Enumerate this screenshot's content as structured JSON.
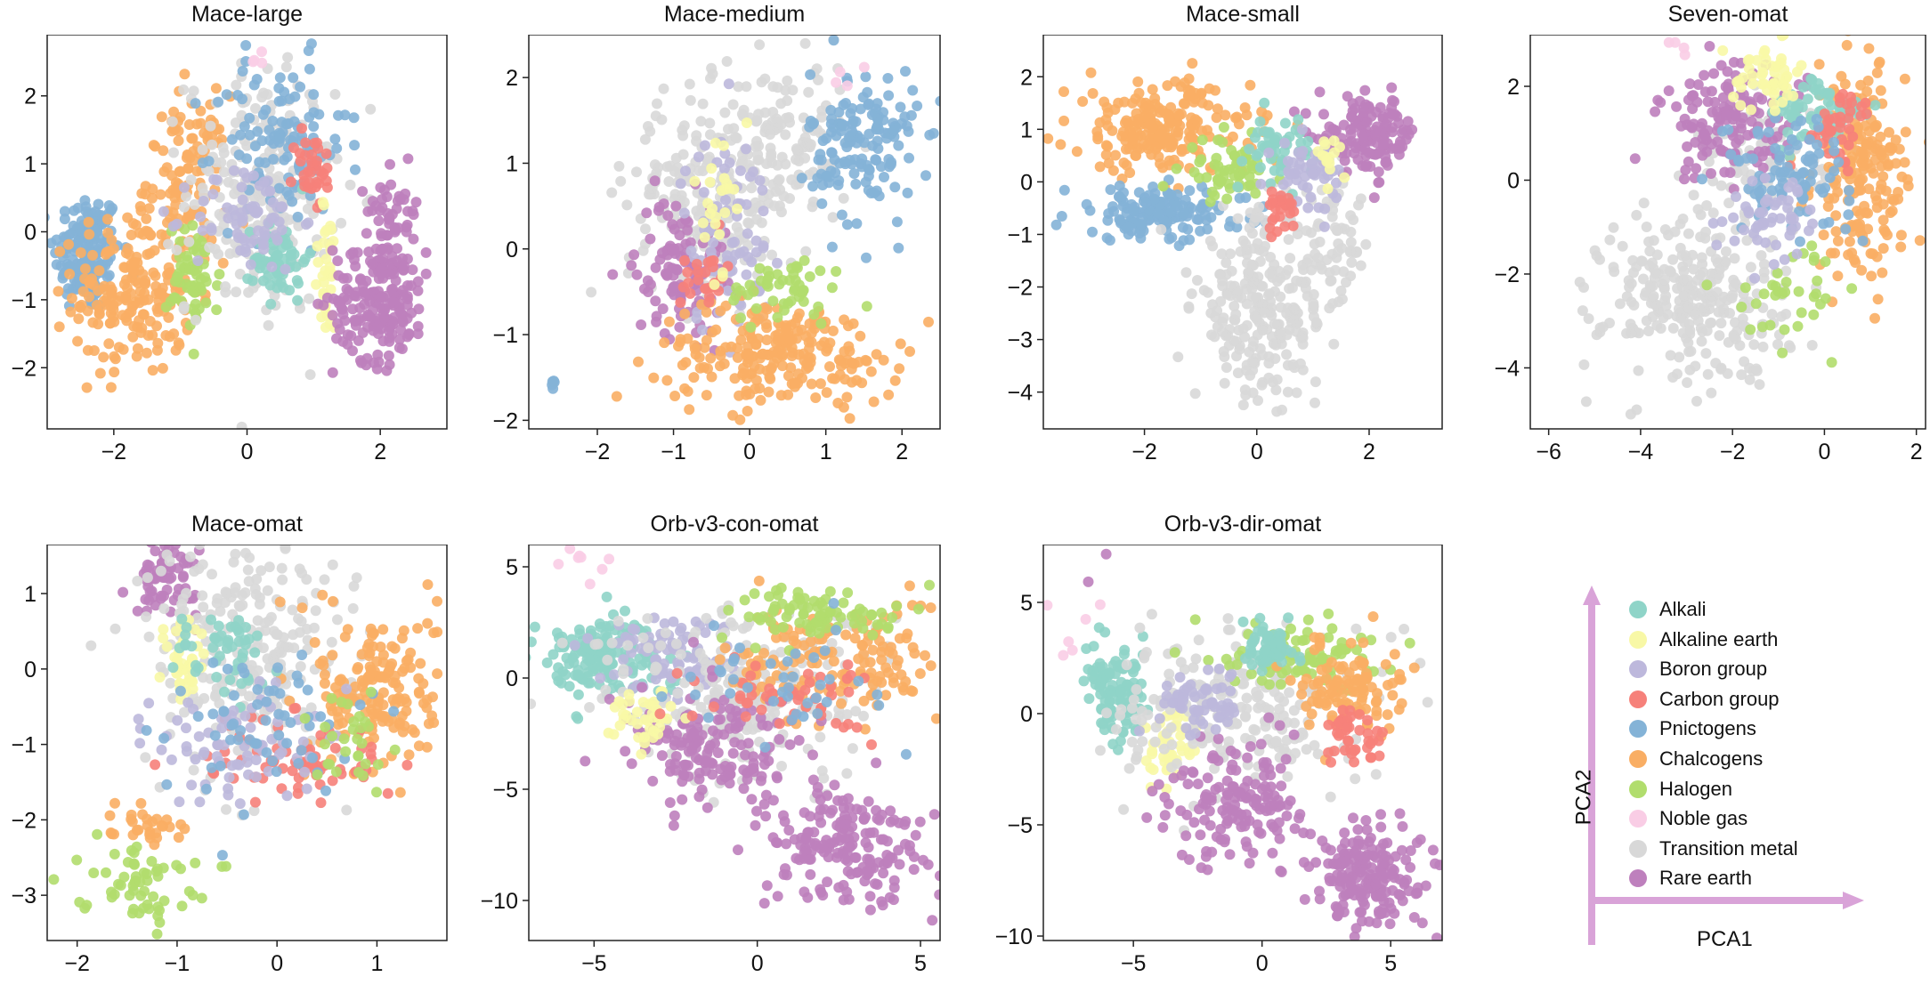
{
  "groups": [
    {
      "key": "alkali",
      "label": "Alkali",
      "color": "#8fd4c8"
    },
    {
      "key": "alkaline",
      "label": "Alkaline earth",
      "color": "#f8f8a6"
    },
    {
      "key": "boron",
      "label": "Boron group",
      "color": "#bdb8dc"
    },
    {
      "key": "carbon",
      "label": "Carbon group",
      "color": "#f6817a"
    },
    {
      "key": "pnictogens",
      "label": "Pnictogens",
      "color": "#84b3d7"
    },
    {
      "key": "chalcogens",
      "label": "Chalcogens",
      "color": "#f9ae64"
    },
    {
      "key": "halogen",
      "label": "Halogen",
      "color": "#b1dd6d"
    },
    {
      "key": "noble",
      "label": "Noble gas",
      "color": "#f9cde5"
    },
    {
      "key": "transition",
      "label": "Transition metal",
      "color": "#d8d8d8"
    },
    {
      "key": "rare",
      "label": "Rare earth",
      "color": "#be80bd"
    }
  ],
  "axes_legend": {
    "x": "PCA1",
    "y": "PCA2",
    "arrow_color": "#d9a3d8"
  },
  "chart_data": [
    {
      "type": "scatter",
      "title": "Mace-large",
      "xlim": [
        -3,
        3
      ],
      "ylim": [
        -2.9,
        2.9
      ],
      "xticks": [
        -2,
        0,
        2
      ],
      "yticks": [
        -2,
        -1,
        0,
        1,
        2
      ],
      "clusters": [
        {
          "group": "pnictogens",
          "cx": -2.4,
          "cy": -0.3,
          "sx": 0.25,
          "sy": 0.45,
          "n": 160
        },
        {
          "group": "chalcogens",
          "cx": -1.7,
          "cy": -0.9,
          "sx": 0.45,
          "sy": 0.6,
          "n": 200
        },
        {
          "group": "chalcogens",
          "cx": -0.9,
          "cy": 0.8,
          "sx": 0.3,
          "sy": 0.6,
          "n": 110
        },
        {
          "group": "halogen",
          "cx": -0.8,
          "cy": -0.7,
          "sx": 0.2,
          "sy": 0.4,
          "n": 60
        },
        {
          "group": "transition",
          "cx": 0.2,
          "cy": 0.6,
          "sx": 0.55,
          "sy": 0.9,
          "n": 230
        },
        {
          "group": "pnictogens",
          "cx": 0.5,
          "cy": 1.3,
          "sx": 0.5,
          "sy": 0.6,
          "n": 110
        },
        {
          "group": "alkali",
          "cx": 0.5,
          "cy": -0.4,
          "sx": 0.2,
          "sy": 0.3,
          "n": 60
        },
        {
          "group": "boron",
          "cx": 0.0,
          "cy": 0.2,
          "sx": 0.4,
          "sy": 0.4,
          "n": 70
        },
        {
          "group": "carbon",
          "cx": 1.0,
          "cy": 0.9,
          "sx": 0.15,
          "sy": 0.3,
          "n": 35
        },
        {
          "group": "alkaline",
          "cx": 1.2,
          "cy": -0.6,
          "sx": 0.1,
          "sy": 0.5,
          "n": 35
        },
        {
          "group": "rare",
          "cx": 2.0,
          "cy": -1.0,
          "sx": 0.35,
          "sy": 0.45,
          "n": 190
        },
        {
          "group": "rare",
          "cx": 2.2,
          "cy": 0.3,
          "sx": 0.2,
          "sy": 0.3,
          "n": 50
        },
        {
          "group": "noble",
          "cx": 0.2,
          "cy": 2.5,
          "sx": 0.2,
          "sy": 0.1,
          "n": 4
        }
      ]
    },
    {
      "type": "scatter",
      "title": "Mace-medium",
      "xlim": [
        -2.9,
        2.5
      ],
      "ylim": [
        -2.1,
        2.5
      ],
      "xticks": [
        -2,
        -1,
        0,
        1,
        2
      ],
      "yticks": [
        -2,
        -1,
        0,
        1,
        2
      ],
      "clusters": [
        {
          "group": "transition",
          "cx": -0.6,
          "cy": 0.6,
          "sx": 0.5,
          "sy": 0.6,
          "n": 220
        },
        {
          "group": "transition",
          "cx": 0.5,
          "cy": 1.2,
          "sx": 0.4,
          "sy": 0.5,
          "n": 120
        },
        {
          "group": "rare",
          "cx": -0.9,
          "cy": -0.2,
          "sx": 0.3,
          "sy": 0.4,
          "n": 110
        },
        {
          "group": "boron",
          "cx": -0.3,
          "cy": 0.2,
          "sx": 0.3,
          "sy": 0.6,
          "n": 80
        },
        {
          "group": "pnictogens",
          "cx": 1.5,
          "cy": 1.2,
          "sx": 0.35,
          "sy": 0.45,
          "n": 150
        },
        {
          "group": "chalcogens",
          "cx": 0.4,
          "cy": -1.2,
          "sx": 0.8,
          "sy": 0.3,
          "n": 230
        },
        {
          "group": "halogen",
          "cx": 0.5,
          "cy": -0.5,
          "sx": 0.4,
          "sy": 0.2,
          "n": 50
        },
        {
          "group": "carbon",
          "cx": -0.6,
          "cy": -0.3,
          "sx": 0.15,
          "sy": 0.2,
          "n": 25
        },
        {
          "group": "alkaline",
          "cx": -0.4,
          "cy": 0.6,
          "sx": 0.1,
          "sy": 0.4,
          "n": 25
        },
        {
          "group": "pnictogens",
          "cx": -2.6,
          "cy": -1.55,
          "sx": 0.04,
          "sy": 0.05,
          "n": 5
        },
        {
          "group": "noble",
          "cx": 1.3,
          "cy": 1.9,
          "sx": 0.15,
          "sy": 0.1,
          "n": 4
        }
      ]
    },
    {
      "type": "scatter",
      "title": "Mace-small",
      "xlim": [
        -3.8,
        3.3
      ],
      "ylim": [
        -4.7,
        2.8
      ],
      "xticks": [
        -2,
        0,
        2
      ],
      "yticks": [
        -4,
        -3,
        -2,
        -1,
        0,
        1,
        2
      ],
      "clusters": [
        {
          "group": "chalcogens",
          "cx": -1.7,
          "cy": 1.0,
          "sx": 0.8,
          "sy": 0.45,
          "n": 220
        },
        {
          "group": "pnictogens",
          "cx": -1.8,
          "cy": -0.6,
          "sx": 0.8,
          "sy": 0.25,
          "n": 150
        },
        {
          "group": "transition",
          "cx": 0.1,
          "cy": -2.4,
          "sx": 0.6,
          "sy": 0.9,
          "n": 260
        },
        {
          "group": "transition",
          "cx": 1.4,
          "cy": -1.3,
          "sx": 0.3,
          "sy": 0.6,
          "n": 60
        },
        {
          "group": "rare",
          "cx": 2.0,
          "cy": 0.9,
          "sx": 0.45,
          "sy": 0.35,
          "n": 140
        },
        {
          "group": "halogen",
          "cx": -0.5,
          "cy": 0.2,
          "sx": 0.35,
          "sy": 0.3,
          "n": 60
        },
        {
          "group": "alkali",
          "cx": 0.4,
          "cy": 0.6,
          "sx": 0.3,
          "sy": 0.3,
          "n": 50
        },
        {
          "group": "boron",
          "cx": 0.9,
          "cy": 0.2,
          "sx": 0.3,
          "sy": 0.3,
          "n": 50
        },
        {
          "group": "carbon",
          "cx": 0.4,
          "cy": -0.6,
          "sx": 0.15,
          "sy": 0.3,
          "n": 25
        },
        {
          "group": "alkaline",
          "cx": 1.3,
          "cy": 0.5,
          "sx": 0.1,
          "sy": 0.2,
          "n": 15
        }
      ]
    },
    {
      "type": "scatter",
      "title": "Seven-omat",
      "xlim": [
        -6.4,
        2.2
      ],
      "ylim": [
        -5.3,
        3.1
      ],
      "xticks": [
        -6,
        -4,
        -2,
        0,
        2
      ],
      "yticks": [
        -4,
        -2,
        0,
        2
      ],
      "clusters": [
        {
          "group": "transition",
          "cx": -2.8,
          "cy": -2.5,
          "sx": 1.0,
          "sy": 0.9,
          "n": 280
        },
        {
          "group": "transition",
          "cx": -1.4,
          "cy": 0.4,
          "sx": 0.7,
          "sy": 0.6,
          "n": 80
        },
        {
          "group": "rare",
          "cx": -2.0,
          "cy": 1.2,
          "sx": 0.8,
          "sy": 0.6,
          "n": 140
        },
        {
          "group": "chalcogens",
          "cx": 0.8,
          "cy": 0.2,
          "sx": 0.5,
          "sy": 1.1,
          "n": 200
        },
        {
          "group": "alkali",
          "cx": -0.1,
          "cy": 1.4,
          "sx": 0.5,
          "sy": 0.4,
          "n": 70
        },
        {
          "group": "carbon",
          "cx": 0.3,
          "cy": 1.1,
          "sx": 0.4,
          "sy": 0.4,
          "n": 40
        },
        {
          "group": "pnictogens",
          "cx": -0.8,
          "cy": 0.2,
          "sx": 0.7,
          "sy": 0.6,
          "n": 90
        },
        {
          "group": "alkaline",
          "cx": -1.2,
          "cy": 2.2,
          "sx": 0.4,
          "sy": 0.35,
          "n": 50
        },
        {
          "group": "halogen",
          "cx": -0.8,
          "cy": -2.4,
          "sx": 0.6,
          "sy": 0.5,
          "n": 35
        },
        {
          "group": "boron",
          "cx": -1.0,
          "cy": -0.7,
          "sx": 0.6,
          "sy": 0.5,
          "n": 50
        },
        {
          "group": "noble",
          "cx": -3.2,
          "cy": 2.8,
          "sx": 0.25,
          "sy": 0.1,
          "n": 4
        }
      ]
    },
    {
      "type": "scatter",
      "title": "Mace-omat",
      "xlim": [
        -2.3,
        1.7
      ],
      "ylim": [
        -3.6,
        1.65
      ],
      "xticks": [
        -2,
        -1,
        0,
        1
      ],
      "yticks": [
        -3,
        -2,
        -1,
        0,
        1
      ],
      "clusters": [
        {
          "group": "rare",
          "cx": -1.1,
          "cy": 1.2,
          "sx": 0.15,
          "sy": 0.25,
          "n": 70
        },
        {
          "group": "transition",
          "cx": -0.3,
          "cy": 0.3,
          "sx": 0.5,
          "sy": 0.8,
          "n": 260
        },
        {
          "group": "chalcogens",
          "cx": 1.0,
          "cy": -0.3,
          "sx": 0.3,
          "sy": 0.55,
          "n": 170
        },
        {
          "group": "alkaline",
          "cx": -0.9,
          "cy": 0.1,
          "sx": 0.1,
          "sy": 0.4,
          "n": 40
        },
        {
          "group": "alkali",
          "cx": -0.5,
          "cy": 0.2,
          "sx": 0.25,
          "sy": 0.3,
          "n": 50
        },
        {
          "group": "carbon",
          "cx": 0.2,
          "cy": -1.2,
          "sx": 0.5,
          "sy": 0.3,
          "n": 70
        },
        {
          "group": "boron",
          "cx": -0.4,
          "cy": -1.0,
          "sx": 0.4,
          "sy": 0.4,
          "n": 80
        },
        {
          "group": "pnictogens",
          "cx": -0.2,
          "cy": -0.7,
          "sx": 0.5,
          "sy": 0.5,
          "n": 60
        },
        {
          "group": "halogen",
          "cx": -1.4,
          "cy": -2.8,
          "sx": 0.3,
          "sy": 0.25,
          "n": 60
        },
        {
          "group": "halogen",
          "cx": 0.7,
          "cy": -1.0,
          "sx": 0.2,
          "sy": 0.3,
          "n": 30
        },
        {
          "group": "chalcogens",
          "cx": -1.3,
          "cy": -2.0,
          "sx": 0.2,
          "sy": 0.15,
          "n": 30
        }
      ]
    },
    {
      "type": "scatter",
      "title": "Orb-v3-con-omat",
      "xlim": [
        -7,
        5.6
      ],
      "ylim": [
        -11.8,
        6
      ],
      "xticks": [
        -5,
        0,
        5
      ],
      "yticks": [
        -10,
        -5,
        0,
        5
      ],
      "clusters": [
        {
          "group": "alkali",
          "cx": -4.8,
          "cy": 1.0,
          "sx": 1.0,
          "sy": 0.9,
          "n": 150
        },
        {
          "group": "boron",
          "cx": -2.8,
          "cy": 1.0,
          "sx": 1.0,
          "sy": 1.0,
          "n": 90
        },
        {
          "group": "transition",
          "cx": -0.5,
          "cy": -0.8,
          "sx": 2.2,
          "sy": 2.0,
          "n": 240
        },
        {
          "group": "chalcogens",
          "cx": 2.4,
          "cy": 0.8,
          "sx": 1.6,
          "sy": 1.4,
          "n": 160
        },
        {
          "group": "halogen",
          "cx": 2.0,
          "cy": 2.9,
          "sx": 1.4,
          "sy": 0.6,
          "n": 80
        },
        {
          "group": "rare",
          "cx": -1.4,
          "cy": -3.3,
          "sx": 1.3,
          "sy": 1.3,
          "n": 150
        },
        {
          "group": "rare",
          "cx": 2.8,
          "cy": -7.5,
          "sx": 1.3,
          "sy": 1.4,
          "n": 190
        },
        {
          "group": "alkaline",
          "cx": -3.5,
          "cy": -1.7,
          "sx": 0.5,
          "sy": 0.6,
          "n": 40
        },
        {
          "group": "carbon",
          "cx": 1.0,
          "cy": -0.8,
          "sx": 1.5,
          "sy": 0.9,
          "n": 50
        },
        {
          "group": "pnictogens",
          "cx": 0.5,
          "cy": 0.0,
          "sx": 1.5,
          "sy": 1.2,
          "n": 40
        },
        {
          "group": "noble",
          "cx": -5.5,
          "cy": 5.0,
          "sx": 0.8,
          "sy": 0.3,
          "n": 8
        }
      ]
    },
    {
      "type": "scatter",
      "title": "Orb-v3-dir-omat",
      "xlim": [
        -8.5,
        7
      ],
      "ylim": [
        -10.2,
        7.6
      ],
      "xticks": [
        -5,
        0,
        5
      ],
      "yticks": [
        -10,
        -5,
        0,
        5
      ],
      "clusters": [
        {
          "group": "alkali",
          "cx": -5.6,
          "cy": 0.7,
          "sx": 0.6,
          "sy": 1.0,
          "n": 110
        },
        {
          "group": "alkaline",
          "cx": -3.5,
          "cy": -1.5,
          "sx": 0.5,
          "sy": 1.0,
          "n": 50
        },
        {
          "group": "transition",
          "cx": -1.0,
          "cy": 0.3,
          "sx": 2.3,
          "sy": 1.8,
          "n": 230
        },
        {
          "group": "halogen",
          "cx": 1.5,
          "cy": 2.7,
          "sx": 1.5,
          "sy": 0.8,
          "n": 90
        },
        {
          "group": "chalcogens",
          "cx": 3.4,
          "cy": 1.2,
          "sx": 1.0,
          "sy": 1.0,
          "n": 110
        },
        {
          "group": "alkali",
          "cx": 0.2,
          "cy": 3.0,
          "sx": 0.6,
          "sy": 0.5,
          "n": 50
        },
        {
          "group": "rare",
          "cx": -0.8,
          "cy": -4.0,
          "sx": 1.3,
          "sy": 1.4,
          "n": 150
        },
        {
          "group": "rare",
          "cx": 4.3,
          "cy": -7.3,
          "sx": 1.2,
          "sy": 1.2,
          "n": 180
        },
        {
          "group": "carbon",
          "cx": 3.5,
          "cy": -1.0,
          "sx": 0.7,
          "sy": 0.6,
          "n": 40
        },
        {
          "group": "boron",
          "cx": -2.3,
          "cy": 0.5,
          "sx": 0.8,
          "sy": 0.8,
          "n": 60
        },
        {
          "group": "noble",
          "cx": -6.5,
          "cy": 4.0,
          "sx": 1.6,
          "sy": 0.6,
          "n": 7
        },
        {
          "group": "rare",
          "cx": -5.8,
          "cy": 6.2,
          "sx": 0.6,
          "sy": 0.5,
          "n": 2
        }
      ]
    }
  ]
}
